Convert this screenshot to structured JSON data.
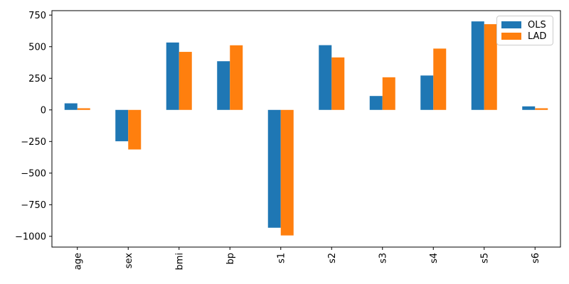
{
  "figure": {
    "background": "#ffffff",
    "axis_color": "#000000",
    "tick_label_color": "#000000"
  },
  "chart_data": {
    "type": "bar",
    "title": "",
    "xlabel": "",
    "ylabel": "",
    "categories": [
      "age",
      "sex",
      "bmi",
      "bp",
      "s1",
      "s2",
      "s3",
      "s4",
      "s5",
      "s6"
    ],
    "series": [
      {
        "name": "OLS",
        "color": "#1f77b4",
        "values": [
          52,
          -248,
          533,
          385,
          -932,
          512,
          110,
          272,
          700,
          28
        ]
      },
      {
        "name": "LAD",
        "color": "#ff7f0e",
        "values": [
          13,
          -313,
          459,
          511,
          -993,
          415,
          258,
          485,
          678,
          13
        ]
      }
    ],
    "ylim": [
      -1085,
      785
    ],
    "yticks": [
      750,
      500,
      250,
      0,
      -250,
      -500,
      -750,
      -1000
    ],
    "grid": false,
    "legend_position": "upper right",
    "x_tick_rotation": 90
  }
}
